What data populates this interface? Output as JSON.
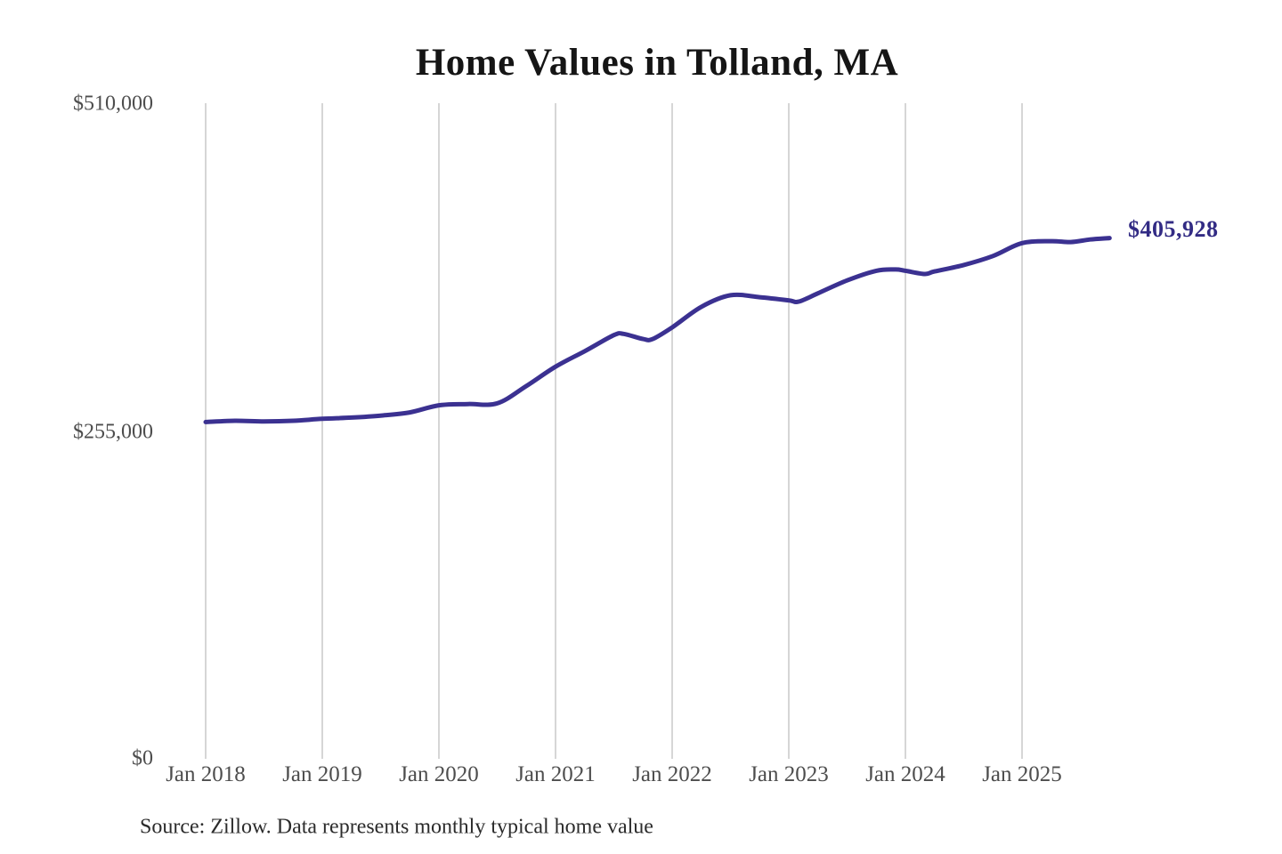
{
  "page": {
    "background_color": "#ffffff"
  },
  "chart_data": {
    "type": "line",
    "title": "Home Values in Tolland, MA",
    "xlabel": "",
    "ylabel": "",
    "ylim": [
      0,
      510000
    ],
    "x_range": [
      "2018-01",
      "2025-10"
    ],
    "grid": "vertical year gridlines only, no axis lines",
    "legend_position": "none",
    "gridline_color": "#c9c9c9",
    "tick_label_color": "#4d4d4d",
    "y_tick_labels": [
      {
        "label": "$510,000",
        "value": 510000
      },
      {
        "label": "$255,000",
        "value": 255000
      },
      {
        "label": "$0",
        "value": 0
      }
    ],
    "x_tick_labels": [
      "Jan 2018",
      "Jan 2019",
      "Jan 2020",
      "Jan 2021",
      "Jan 2022",
      "Jan 2023",
      "Jan 2024",
      "Jan 2025"
    ],
    "series": [
      {
        "name": "Monthly typical home value",
        "color": "#3b3191",
        "points": [
          [
            "2018-01",
            263000
          ],
          [
            "2018-04",
            264000
          ],
          [
            "2018-07",
            263500
          ],
          [
            "2018-10",
            264000
          ],
          [
            "2019-01",
            265500
          ],
          [
            "2019-04",
            266500
          ],
          [
            "2019-07",
            268000
          ],
          [
            "2019-10",
            270500
          ],
          [
            "2020-01",
            276000
          ],
          [
            "2020-04",
            277000
          ],
          [
            "2020-07",
            277500
          ],
          [
            "2020-10",
            291000
          ],
          [
            "2021-01",
            306000
          ],
          [
            "2021-04",
            318000
          ],
          [
            "2021-07",
            330500
          ],
          [
            "2021-08",
            331500
          ],
          [
            "2021-10",
            327500
          ],
          [
            "2021-11",
            327500
          ],
          [
            "2022-01",
            336500
          ],
          [
            "2022-04",
            352500
          ],
          [
            "2022-07",
            361500
          ],
          [
            "2022-10",
            360000
          ],
          [
            "2023-01",
            357500
          ],
          [
            "2023-02",
            356500
          ],
          [
            "2023-04",
            363000
          ],
          [
            "2023-07",
            373000
          ],
          [
            "2023-10",
            380500
          ],
          [
            "2023-12",
            381500
          ],
          [
            "2024-01",
            380500
          ],
          [
            "2024-03",
            378000
          ],
          [
            "2024-04",
            380000
          ],
          [
            "2024-07",
            385000
          ],
          [
            "2024-10",
            392000
          ],
          [
            "2025-01",
            402000
          ],
          [
            "2025-04",
            403500
          ],
          [
            "2025-06",
            402800
          ],
          [
            "2025-08",
            404800
          ],
          [
            "2025-10",
            405928
          ]
        ]
      }
    ],
    "end_label": "$405,928",
    "end_label_color": "#322b84",
    "latest_value": 405928,
    "source_note": "Source: Zillow. Data represents monthly typical home value"
  }
}
